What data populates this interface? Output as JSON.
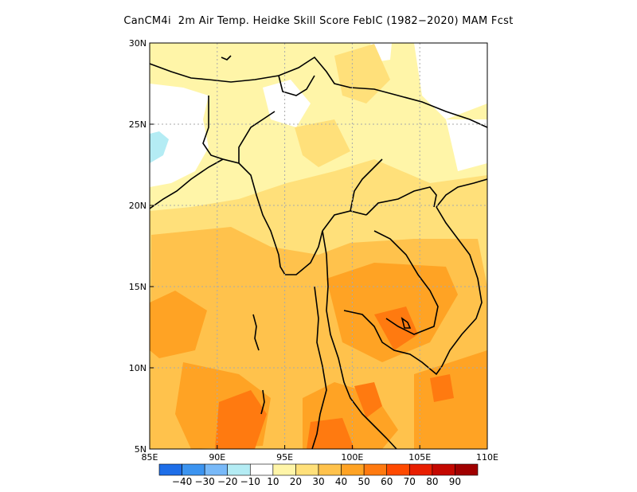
{
  "title": "CanCM4i  2m Air Temp. Heidke Skill Score FebIC (1982−2020) MAM Fcst",
  "map": {
    "lon_range": [
      85,
      110
    ],
    "lat_range": [
      5,
      30
    ],
    "lon_tick_labels": [
      "85E",
      "90E",
      "95E",
      "100E",
      "105E",
      "110E"
    ],
    "lat_tick_labels": [
      "5N",
      "10N",
      "15N",
      "20N",
      "25N",
      "30N"
    ],
    "gridlines": "dotted"
  },
  "colorbar": {
    "colors": [
      "#1e6ee8",
      "#3c94f0",
      "#78b9f8",
      "#b4ecf4",
      "#ffffff",
      "#fff5a8",
      "#ffe07a",
      "#ffc24c",
      "#ffa324",
      "#ff7a10",
      "#ff4a00",
      "#e81e00",
      "#c40800",
      "#a00000"
    ],
    "labels": [
      "−40",
      "−30",
      "−20",
      "−10",
      "10",
      "20",
      "30",
      "40",
      "50",
      "60",
      "70",
      "80",
      "90"
    ]
  }
}
